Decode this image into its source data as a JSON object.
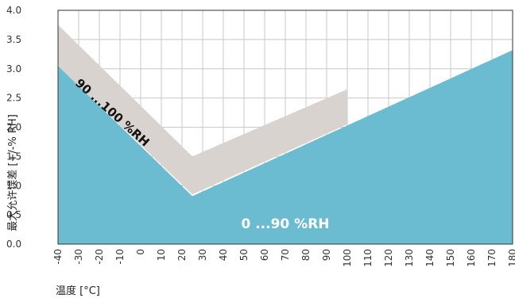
{
  "chart_data": {
    "type": "area",
    "xlabel": "温度 [°C]",
    "ylabel": "最大允许误差 [+/-% RH]",
    "x_ticks": [
      -40,
      -30,
      -20,
      -10,
      0,
      10,
      20,
      30,
      40,
      50,
      60,
      70,
      80,
      90,
      100,
      110,
      120,
      130,
      140,
      150,
      160,
      170,
      180
    ],
    "y_ticks": [
      0.0,
      0.5,
      1.0,
      1.5,
      2.0,
      2.5,
      3.0,
      3.5,
      4.0
    ],
    "xlim": [
      -40,
      180
    ],
    "ylim": [
      0,
      4
    ],
    "grid": true,
    "series": [
      {
        "name": "90 ...100 %RH",
        "color": "#d8d3ce",
        "points": [
          [
            -40,
            3.75
          ],
          [
            25,
            1.5
          ],
          [
            100,
            2.65
          ],
          [
            100,
            2.05
          ],
          [
            25,
            0.85
          ],
          [
            -40,
            3.05
          ]
        ]
      },
      {
        "name": "0 ...90 %RH",
        "color": "#6bbcd0",
        "points": [
          [
            -40,
            3.05
          ],
          [
            25,
            0.82
          ],
          [
            180,
            3.32
          ],
          [
            180,
            0
          ],
          [
            -40,
            0
          ]
        ]
      }
    ],
    "annotations": [
      {
        "text": "90 ...100 %RH",
        "x": -15,
        "y": 2.2,
        "rotation": 42,
        "color": "#111111"
      },
      {
        "text": "0 ...90 %RH",
        "x": 70,
        "y": 0.27,
        "rotation": 0,
        "color": "#ffffff"
      }
    ]
  }
}
